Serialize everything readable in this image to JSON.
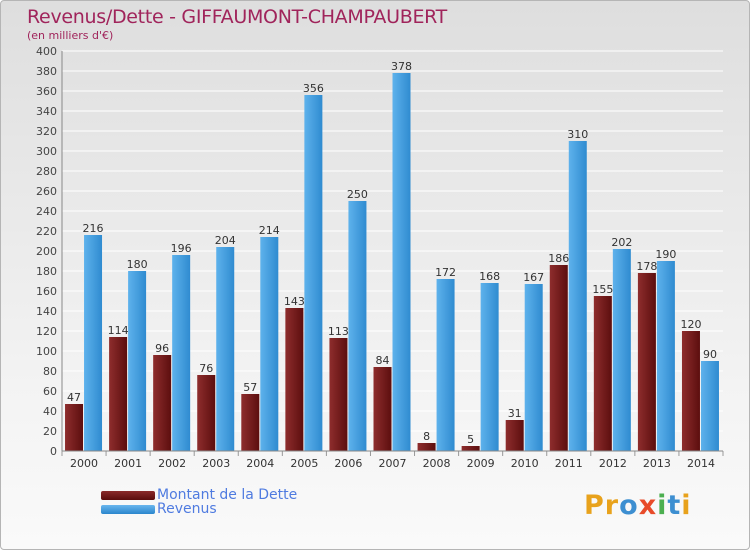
{
  "header": {
    "title": "Revenus/Dette - GIFFAUMONT-CHAMPAUBERT",
    "subtitle": "(en milliers d'€)"
  },
  "legend": {
    "items": [
      {
        "label": "Montant de la Dette",
        "color": "#7a1a1a"
      },
      {
        "label": "Revenus",
        "color": "#4aa3e6"
      }
    ]
  },
  "logo": {
    "letters": [
      "P",
      "r",
      "o",
      "x",
      "i",
      "t",
      "i"
    ],
    "colors": [
      "#e8a21c",
      "#e8a21c",
      "#3d8fd1",
      "#e84b2a",
      "#4caf50",
      "#3d8fd1",
      "#e8a21c"
    ]
  },
  "chart_data": {
    "type": "bar",
    "categories": [
      "2000",
      "2001",
      "2002",
      "2003",
      "2004",
      "2005",
      "2006",
      "2007",
      "2008",
      "2009",
      "2010",
      "2011",
      "2012",
      "2013",
      "2014"
    ],
    "series": [
      {
        "name": "Montant de la Dette",
        "values": [
          47,
          114,
          96,
          76,
          57,
          143,
          113,
          84,
          8,
          5,
          31,
          186,
          155,
          178,
          120
        ],
        "color": "#7a1a1a"
      },
      {
        "name": "Revenus",
        "values": [
          216,
          180,
          196,
          204,
          214,
          356,
          250,
          378,
          172,
          168,
          167,
          310,
          202,
          190,
          90
        ],
        "color": "#4aa3e6"
      }
    ],
    "title": "Revenus/Dette - GIFFAUMONT-CHAMPAUBERT",
    "ylabel": "(en milliers d'€)",
    "ylim": [
      0,
      400
    ],
    "yticks": [
      0,
      20,
      40,
      60,
      80,
      100,
      120,
      140,
      160,
      180,
      200,
      220,
      240,
      260,
      280,
      300,
      320,
      340,
      360,
      380,
      400
    ],
    "grid": true,
    "legend_position": "bottom-left"
  }
}
